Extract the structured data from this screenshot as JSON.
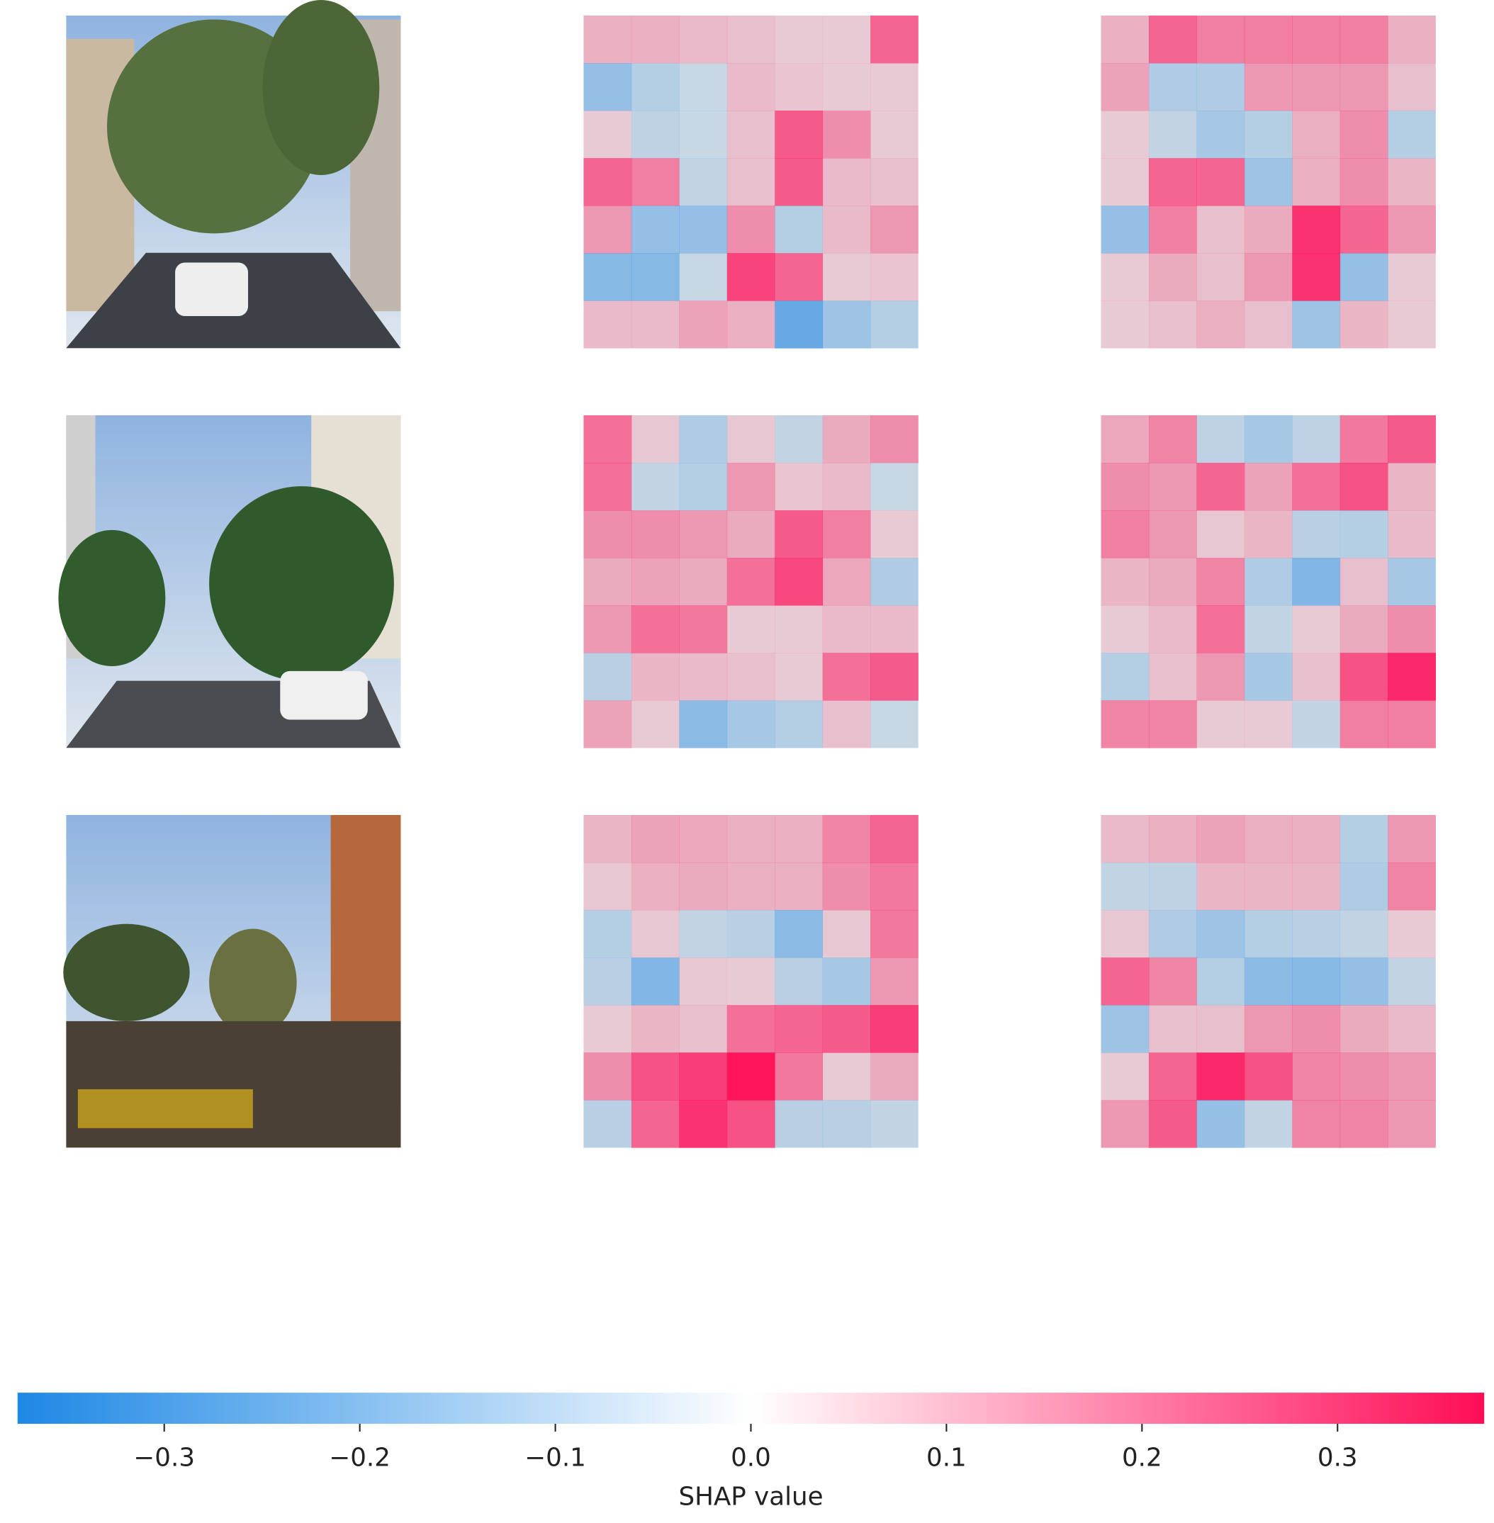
{
  "chart_data": {
    "type": "heatmap",
    "xlabel": "SHAP value",
    "clim": [
      -0.375,
      0.375
    ],
    "colormap": [
      "#1e88e5",
      "#ffffff",
      "#ff0d57"
    ],
    "xticks": [
      {
        "value": -0.3,
        "label": "−0.3"
      },
      {
        "value": -0.2,
        "label": "−0.2"
      },
      {
        "value": -0.1,
        "label": "−0.1"
      },
      {
        "value": 0,
        "label": "0.0"
      },
      0.1,
      0.2,
      0.3
    ],
    "panels": [
      [
        [
          [
            0.05,
            0.05,
            0.03,
            0.02,
            0.0,
            0.0,
            0.2
          ],
          [
            -0.12,
            -0.05,
            -0.01,
            0.03,
            0.01,
            0.0,
            0.0
          ],
          [
            0.0,
            -0.03,
            -0.01,
            0.02,
            0.22,
            0.12,
            0.0
          ],
          [
            0.2,
            0.15,
            -0.02,
            0.02,
            0.22,
            0.03,
            0.02
          ],
          [
            0.1,
            -0.12,
            -0.12,
            0.12,
            -0.05,
            0.03,
            0.1
          ],
          [
            -0.15,
            -0.15,
            -0.01,
            0.27,
            0.2,
            0.0,
            0.01
          ],
          [
            0.03,
            0.03,
            0.08,
            0.05,
            -0.22,
            -0.1,
            -0.05
          ]
        ],
        [
          [
            0.05,
            0.2,
            0.15,
            0.15,
            0.15,
            0.15,
            0.05
          ],
          [
            0.08,
            -0.06,
            -0.06,
            0.1,
            0.1,
            0.1,
            0.02
          ],
          [
            0.0,
            -0.02,
            -0.08,
            -0.05,
            0.05,
            0.12,
            -0.05
          ],
          [
            0.0,
            0.2,
            0.2,
            -0.1,
            0.05,
            0.12,
            0.04
          ],
          [
            -0.12,
            0.15,
            0.02,
            0.06,
            0.3,
            0.2,
            0.1
          ],
          [
            0.0,
            0.06,
            0.02,
            0.1,
            0.3,
            -0.12,
            0.0
          ],
          [
            0.0,
            0.02,
            0.05,
            0.02,
            -0.1,
            0.04,
            0.0
          ]
        ]
      ],
      [
        [
          [
            0.18,
            0.005,
            -0.06,
            0.005,
            -0.02,
            0.06,
            0.12
          ],
          [
            0.18,
            -0.02,
            -0.05,
            0.1,
            0.01,
            0.03,
            -0.01
          ],
          [
            0.12,
            0.12,
            0.1,
            0.06,
            0.22,
            0.15,
            0.0
          ],
          [
            0.06,
            0.08,
            0.06,
            0.18,
            0.26,
            0.07,
            -0.06
          ],
          [
            0.1,
            0.18,
            0.16,
            0.0,
            0.0,
            0.03,
            0.03
          ],
          [
            -0.04,
            0.04,
            0.03,
            0.02,
            0.0,
            0.18,
            0.22
          ],
          [
            0.08,
            0.0,
            -0.14,
            -0.08,
            -0.05,
            0.02,
            -0.01
          ]
        ],
        [
          [
            0.07,
            0.14,
            -0.03,
            -0.08,
            -0.03,
            0.16,
            0.22
          ],
          [
            0.12,
            0.1,
            0.2,
            0.08,
            0.18,
            0.24,
            0.04
          ],
          [
            0.15,
            0.1,
            0.005,
            0.04,
            -0.04,
            -0.05,
            0.03
          ],
          [
            0.04,
            0.06,
            0.14,
            -0.06,
            -0.16,
            0.02,
            -0.08
          ],
          [
            0.0,
            0.03,
            0.18,
            -0.02,
            0.0,
            0.06,
            0.12
          ],
          [
            -0.05,
            0.02,
            0.1,
            -0.08,
            0.02,
            0.24,
            0.32
          ],
          [
            0.14,
            0.14,
            0.0,
            0.0,
            -0.02,
            0.15,
            0.15
          ]
        ]
      ],
      [
        [
          [
            0.04,
            0.08,
            0.07,
            0.05,
            0.05,
            0.14,
            0.2
          ],
          [
            0.005,
            0.05,
            0.06,
            0.05,
            0.05,
            0.12,
            0.16
          ],
          [
            -0.05,
            0.005,
            -0.02,
            -0.04,
            -0.14,
            0.005,
            0.16
          ],
          [
            -0.04,
            -0.16,
            0.005,
            0.0,
            -0.04,
            -0.08,
            0.1
          ],
          [
            0.0,
            0.04,
            0.02,
            0.18,
            0.2,
            0.22,
            0.28
          ],
          [
            0.12,
            0.24,
            0.28,
            0.36,
            0.16,
            0.0,
            0.06
          ],
          [
            -0.04,
            0.2,
            0.3,
            0.24,
            -0.04,
            -0.04,
            -0.02
          ]
        ],
        [
          [
            0.03,
            0.05,
            0.08,
            0.05,
            0.05,
            -0.05,
            0.1
          ],
          [
            -0.02,
            -0.03,
            0.04,
            0.04,
            0.04,
            -0.06,
            0.14
          ],
          [
            0.005,
            -0.06,
            -0.1,
            -0.05,
            -0.04,
            -0.02,
            0.0
          ],
          [
            0.2,
            0.14,
            -0.05,
            -0.14,
            -0.15,
            -0.12,
            -0.02
          ],
          [
            -0.1,
            0.02,
            0.02,
            0.1,
            0.12,
            0.06,
            0.03
          ],
          [
            0.0,
            0.2,
            0.32,
            0.24,
            0.14,
            0.12,
            0.1
          ],
          [
            0.1,
            0.22,
            -0.12,
            -0.02,
            0.14,
            0.14,
            0.1
          ]
        ]
      ]
    ]
  }
}
